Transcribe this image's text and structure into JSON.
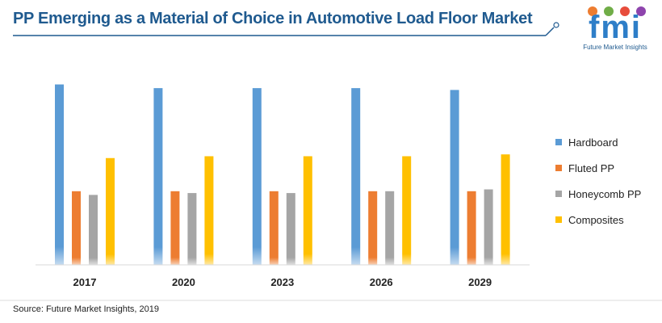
{
  "title": "PP Emerging as a Material of Choice in Automotive Load Floor Market",
  "logo": {
    "text": "fmi",
    "subtitle": "Future Market Insights"
  },
  "source": "Source: Future Market Insights, 2019",
  "chart_data": {
    "type": "bar",
    "categories": [
      "2017",
      "2020",
      "2023",
      "2026",
      "2029"
    ],
    "series": [
      {
        "name": "Hardboard",
        "values": [
          98,
          96,
          96,
          96,
          95
        ]
      },
      {
        "name": "Fluted PP",
        "values": [
          40,
          40,
          40,
          40,
          40
        ]
      },
      {
        "name": "Honeycomb PP",
        "values": [
          38,
          39,
          39,
          40,
          41
        ]
      },
      {
        "name": "Composites",
        "values": [
          58,
          59,
          59,
          59,
          60
        ]
      }
    ],
    "colors": [
      "#5b9bd5",
      "#ed7d31",
      "#a5a5a5",
      "#ffc000"
    ],
    "ylim": [
      0,
      100
    ],
    "legend": "right",
    "grid": false
  }
}
